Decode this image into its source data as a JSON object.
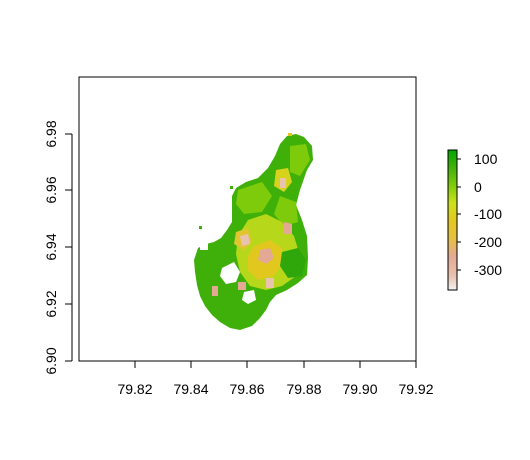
{
  "chart_data": {
    "type": "heatmap",
    "title": "",
    "xlabel": "",
    "ylabel": "",
    "xlim": [
      79.8,
      79.92
    ],
    "ylim": [
      6.9,
      7.0
    ],
    "x_ticks": [
      "79.82",
      "79.84",
      "79.86",
      "79.88",
      "79.90",
      "79.92"
    ],
    "y_ticks": [
      "6.90",
      "6.92",
      "6.94",
      "6.96",
      "6.98"
    ],
    "legend": {
      "placement": "right",
      "ticks": [
        "100",
        "0",
        "-100",
        "-200",
        "-300"
      ],
      "range": [
        -380,
        150
      ],
      "colors": [
        "#f2f2f2",
        "#e9c2b0",
        "#e3a994",
        "#e6c23c",
        "#e2c81e",
        "#cce21a",
        "#7dcb0a",
        "#3fb00a",
        "#00a600"
      ]
    },
    "raster_region": {
      "description": "Irregular landmass raster over Colombo area; mostly green (high values) with yellow/orange/pink pockets (low values) in the center.",
      "dominant_color": "#3fb00a"
    }
  }
}
